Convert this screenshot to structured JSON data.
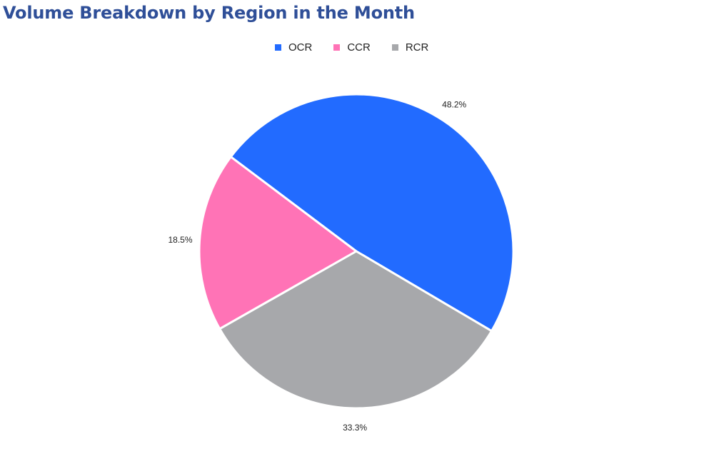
{
  "title": "Volume Breakdown by Region in the Month",
  "chart_data": {
    "type": "pie",
    "title": "Volume Breakdown by Region in the Month",
    "legend_position": "top",
    "slices": [
      {
        "label": "OCR",
        "value": 48.2,
        "display": "48.2%",
        "color": "#226bff"
      },
      {
        "label": "CCR",
        "value": 18.5,
        "display": "18.5%",
        "color": "#ff73b6"
      },
      {
        "label": "RCR",
        "value": 33.3,
        "display": "33.3%",
        "color": "#a7a8ab"
      }
    ]
  }
}
